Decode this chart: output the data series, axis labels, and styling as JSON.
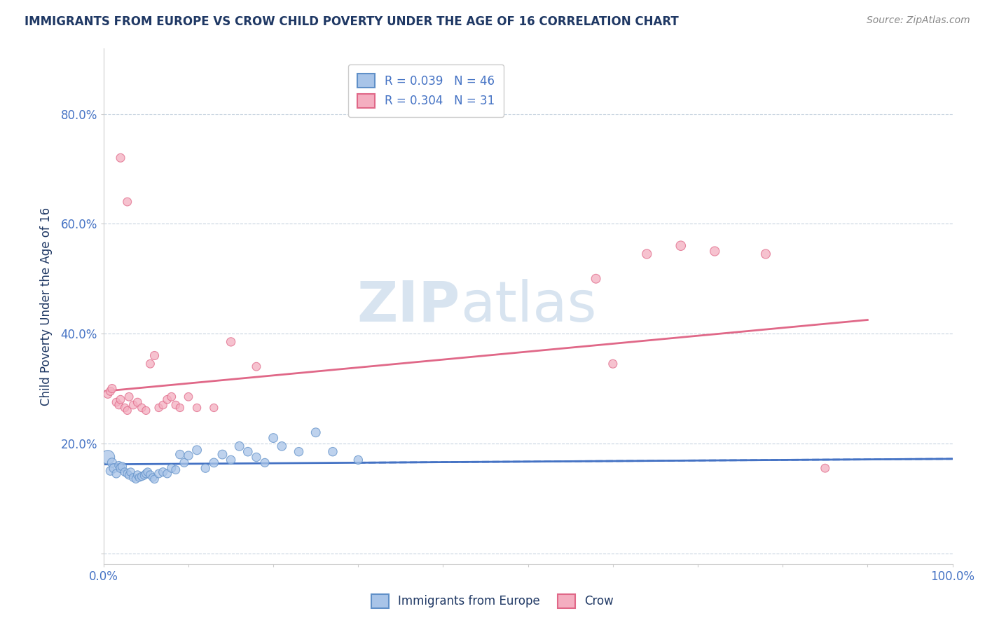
{
  "title": "IMMIGRANTS FROM EUROPE VS CROW CHILD POVERTY UNDER THE AGE OF 16 CORRELATION CHART",
  "source": "Source: ZipAtlas.com",
  "ylabel": "Child Poverty Under the Age of 16",
  "xlim": [
    0.0,
    1.0
  ],
  "ylim": [
    -0.02,
    0.92
  ],
  "xticks": [
    0.0,
    0.1,
    0.2,
    0.3,
    0.4,
    0.5,
    0.6,
    0.7,
    0.8,
    0.9,
    1.0
  ],
  "xticklabels": [
    "0.0%",
    "",
    "",
    "",
    "",
    "",
    "",
    "",
    "",
    "",
    "100.0%"
  ],
  "yticks": [
    0.0,
    0.2,
    0.4,
    0.6,
    0.8
  ],
  "yticklabels": [
    "",
    "20.0%",
    "40.0%",
    "60.0%",
    "80.0%"
  ],
  "legend_r_blue": "R = 0.039",
  "legend_n_blue": "N = 46",
  "legend_r_pink": "R = 0.304",
  "legend_n_pink": "N = 31",
  "blue_color": "#a8c4e8",
  "pink_color": "#f4aec0",
  "blue_edge_color": "#6090c8",
  "pink_edge_color": "#e06888",
  "blue_line_color": "#4472c4",
  "pink_line_color": "#e06888",
  "title_color": "#1f3864",
  "tick_color": "#4472c4",
  "grid_color": "#c8d4e0",
  "watermark_color": "#d8e4f0",
  "blue_scatter_x": [
    0.005,
    0.008,
    0.01,
    0.012,
    0.015,
    0.018,
    0.02,
    0.022,
    0.025,
    0.028,
    0.03,
    0.032,
    0.035,
    0.038,
    0.04,
    0.042,
    0.045,
    0.048,
    0.05,
    0.052,
    0.055,
    0.058,
    0.06,
    0.065,
    0.07,
    0.075,
    0.08,
    0.085,
    0.09,
    0.095,
    0.1,
    0.11,
    0.12,
    0.13,
    0.14,
    0.15,
    0.16,
    0.17,
    0.18,
    0.19,
    0.2,
    0.21,
    0.23,
    0.25,
    0.27,
    0.3
  ],
  "blue_scatter_y": [
    0.175,
    0.15,
    0.165,
    0.155,
    0.145,
    0.16,
    0.155,
    0.158,
    0.148,
    0.145,
    0.142,
    0.148,
    0.138,
    0.135,
    0.143,
    0.138,
    0.14,
    0.142,
    0.145,
    0.148,
    0.143,
    0.138,
    0.135,
    0.145,
    0.148,
    0.145,
    0.155,
    0.152,
    0.18,
    0.165,
    0.178,
    0.188,
    0.155,
    0.165,
    0.18,
    0.17,
    0.195,
    0.185,
    0.175,
    0.165,
    0.21,
    0.195,
    0.185,
    0.22,
    0.185,
    0.17
  ],
  "blue_scatter_size": [
    200,
    80,
    90,
    85,
    75,
    70,
    80,
    75,
    70,
    68,
    65,
    70,
    68,
    65,
    68,
    65,
    70,
    68,
    72,
    70,
    68,
    65,
    68,
    72,
    75,
    72,
    75,
    72,
    80,
    75,
    80,
    85,
    78,
    82,
    85,
    80,
    85,
    82,
    78,
    75,
    85,
    82,
    80,
    85,
    80,
    78
  ],
  "pink_scatter_x": [
    0.005,
    0.008,
    0.01,
    0.015,
    0.018,
    0.02,
    0.025,
    0.028,
    0.03,
    0.035,
    0.04,
    0.045,
    0.05,
    0.055,
    0.06,
    0.065,
    0.07,
    0.075,
    0.08,
    0.085,
    0.09,
    0.1,
    0.11,
    0.13,
    0.15,
    0.18,
    0.58,
    0.64,
    0.68,
    0.72,
    0.78
  ],
  "pink_scatter_y": [
    0.29,
    0.295,
    0.3,
    0.275,
    0.27,
    0.28,
    0.265,
    0.26,
    0.285,
    0.27,
    0.275,
    0.265,
    0.26,
    0.345,
    0.36,
    0.265,
    0.27,
    0.28,
    0.285,
    0.27,
    0.265,
    0.285,
    0.265,
    0.265,
    0.385,
    0.34,
    0.5,
    0.545,
    0.56,
    0.55,
    0.545
  ],
  "pink_scatter_size": [
    75,
    72,
    75,
    70,
    68,
    72,
    68,
    65,
    72,
    70,
    72,
    68,
    65,
    72,
    75,
    65,
    68,
    70,
    72,
    68,
    65,
    70,
    65,
    65,
    78,
    72,
    85,
    90,
    95,
    90,
    88
  ],
  "blue_trend_x": [
    0.0,
    1.0
  ],
  "blue_trend_y": [
    0.162,
    0.172
  ],
  "pink_trend_x": [
    0.0,
    0.9
  ],
  "pink_trend_y": [
    0.295,
    0.425
  ]
}
